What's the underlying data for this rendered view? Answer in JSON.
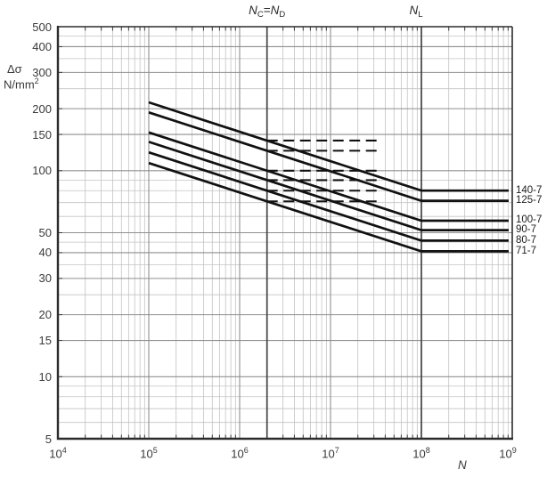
{
  "figure": {
    "background": "#ffffff",
    "curve_color": "#111111",
    "grid_minor_color": "#c3c3c3",
    "grid_major_color": "#8f8f8f",
    "border_color": "#2c2c2c",
    "refline_color": "#444444",
    "text_color": "#3a3a3a"
  },
  "axes": {
    "y_unit_line1": "Δσ",
    "y_unit_line2_base": "N/mm",
    "y_unit_line2_exp": "2",
    "x_axis_name": "N",
    "x_ticks": [
      {
        "base": "10",
        "exp": "4",
        "value": 10000
      },
      {
        "base": "10",
        "exp": "5",
        "value": 100000
      },
      {
        "base": "10",
        "exp": "6",
        "value": 1000000
      },
      {
        "base": "10",
        "exp": "7",
        "value": 10000000
      },
      {
        "base": "10",
        "exp": "8",
        "value": 100000000
      },
      {
        "base": "10",
        "exp": "9",
        "value": 1000000000
      }
    ],
    "y_ticks": [
      {
        "label": "500",
        "value": 500
      },
      {
        "label": "400",
        "value": 400
      },
      {
        "label": "300",
        "value": 300
      },
      {
        "label": "200",
        "value": 200
      },
      {
        "label": "150",
        "value": 150
      },
      {
        "label": "100",
        "value": 100
      },
      {
        "label": "50",
        "value": 50
      },
      {
        "label": "40",
        "value": 40
      },
      {
        "label": "30",
        "value": 30
      },
      {
        "label": "20",
        "value": 20
      },
      {
        "label": "15",
        "value": 15
      },
      {
        "label": "10",
        "value": 10
      },
      {
        "label": "5",
        "value": 5
      }
    ]
  },
  "chart_data": {
    "type": "line",
    "title": "",
    "xlabel": "N",
    "ylabel": "Δσ N/mm²",
    "x_scale": "log",
    "y_scale": "log",
    "xlim": [
      10000,
      1000000000
    ],
    "ylim": [
      5,
      500
    ],
    "grid": "log minor + major, on",
    "legend_position": "right-of-plot, one label per curve plateau",
    "slope_m1": 7,
    "curve_shape": "straight line of slope 1/7 (log-log) from N=1e5 through (2e6, delta_sigma_c) down to N=1e8, then horizontal cut-off plateau to 1e9",
    "series_start_N": 100000,
    "reference_lines": [
      {
        "N": 2000000,
        "label_parts": {
          "s1": "N",
          "sub1": "C",
          "eq": "=",
          "s2": "N",
          "sub2": "D"
        }
      },
      {
        "N": 100000000,
        "label_parts": {
          "s1": "N",
          "sub1": "L"
        }
      }
    ],
    "dashed_extension": {
      "description": "horizontal dashed line at delta_sigma_c level for each curve",
      "start_N": 2000000,
      "end_N": 37000000
    },
    "series": [
      {
        "label": "140-7",
        "delta_sigma_c": 140,
        "plateau_delta_sigma_L": 80.0,
        "points": [
          {
            "N": 100000,
            "ds": 214.8
          },
          {
            "N": 2000000,
            "ds": 140
          },
          {
            "N": 100000000,
            "ds": 80.0
          },
          {
            "N": 1000000000,
            "ds": 80.0
          }
        ]
      },
      {
        "label": "125-7",
        "delta_sigma_c": 125,
        "plateau_delta_sigma_L": 71.5,
        "points": [
          {
            "N": 100000,
            "ds": 191.8
          },
          {
            "N": 2000000,
            "ds": 125
          },
          {
            "N": 100000000,
            "ds": 71.5
          },
          {
            "N": 1000000000,
            "ds": 71.5
          }
        ]
      },
      {
        "label": "100-7",
        "delta_sigma_c": 100,
        "plateau_delta_sigma_L": 57.2,
        "points": [
          {
            "N": 100000,
            "ds": 153.4
          },
          {
            "N": 2000000,
            "ds": 100
          },
          {
            "N": 100000000,
            "ds": 57.2
          },
          {
            "N": 1000000000,
            "ds": 57.2
          }
        ]
      },
      {
        "label": "90-7",
        "delta_sigma_c": 90,
        "plateau_delta_sigma_L": 51.5,
        "points": [
          {
            "N": 100000,
            "ds": 138.1
          },
          {
            "N": 2000000,
            "ds": 90
          },
          {
            "N": 100000000,
            "ds": 51.5
          },
          {
            "N": 1000000000,
            "ds": 51.5
          }
        ]
      },
      {
        "label": "80-7",
        "delta_sigma_c": 80,
        "plateau_delta_sigma_L": 45.7,
        "points": [
          {
            "N": 100000,
            "ds": 122.7
          },
          {
            "N": 2000000,
            "ds": 80
          },
          {
            "N": 100000000,
            "ds": 45.7
          },
          {
            "N": 1000000000,
            "ds": 45.7
          }
        ]
      },
      {
        "label": "71-7",
        "delta_sigma_c": 71,
        "plateau_delta_sigma_L": 40.6,
        "points": [
          {
            "N": 100000,
            "ds": 108.9
          },
          {
            "N": 2000000,
            "ds": 71
          },
          {
            "N": 100000000,
            "ds": 40.6
          },
          {
            "N": 1000000000,
            "ds": 40.6
          }
        ]
      }
    ],
    "y_gridlines_major": [
      500,
      400,
      300,
      200,
      150,
      100,
      50,
      40,
      30,
      20,
      15,
      10,
      5
    ],
    "y_gridlines_minor": [
      450,
      350,
      250,
      90,
      80,
      70,
      60,
      45,
      35,
      25,
      9,
      8,
      7,
      6
    ]
  }
}
